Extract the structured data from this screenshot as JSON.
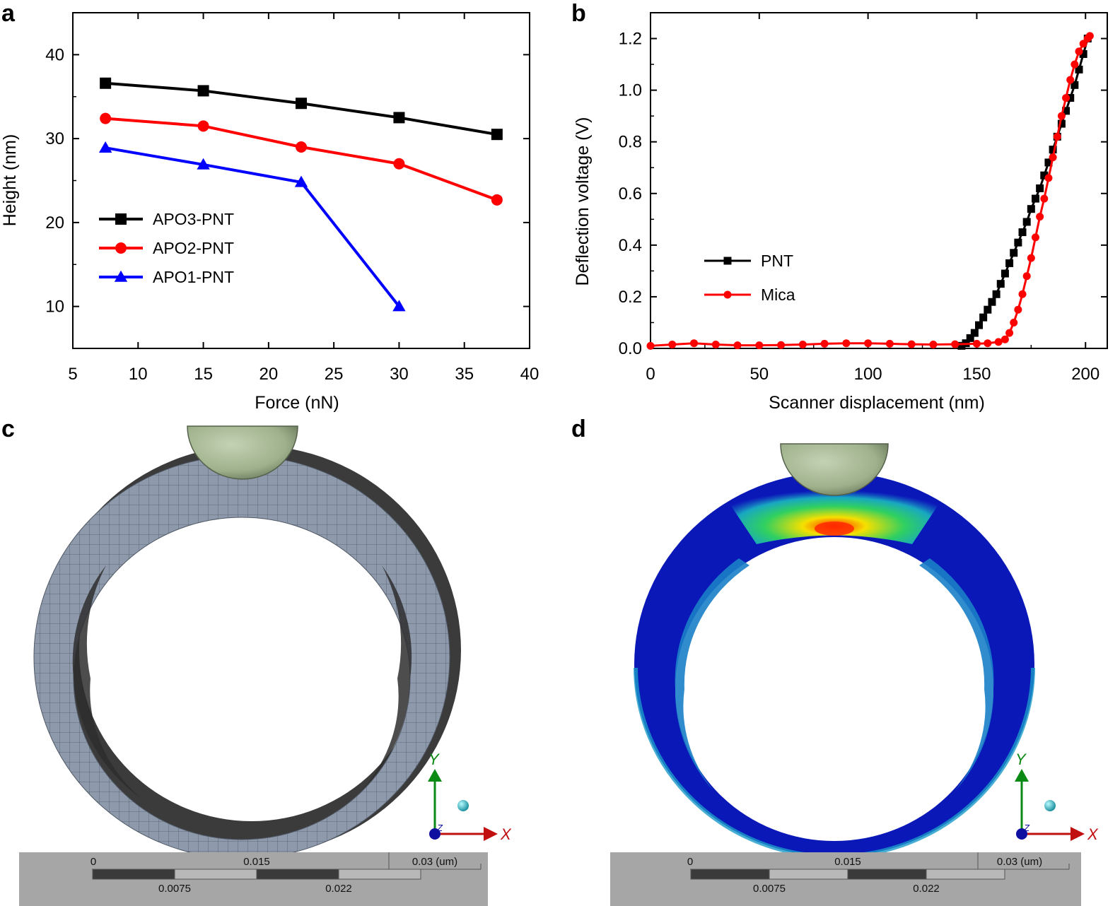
{
  "panels": {
    "a": {
      "letter": "a"
    },
    "b": {
      "letter": "b"
    },
    "c": {
      "letter": "c"
    },
    "d": {
      "letter": "d"
    }
  },
  "chart_data": [
    {
      "panel": "a",
      "type": "line",
      "title": "",
      "xlabel": "Force (nN)",
      "ylabel": "Height (nm)",
      "xlim": [
        5,
        40
      ],
      "ylim": [
        5,
        45
      ],
      "xticks": [
        5,
        10,
        15,
        20,
        25,
        30,
        35,
        40
      ],
      "yticks": [
        10,
        20,
        30,
        40
      ],
      "legend_position": "middle-left",
      "series": [
        {
          "name": "APO3-PNT",
          "color": "#000000",
          "marker": "square",
          "x": [
            7.5,
            15,
            22.5,
            30,
            37.5
          ],
          "y": [
            36.6,
            35.7,
            34.2,
            32.5,
            30.5
          ]
        },
        {
          "name": "APO2-PNT",
          "color": "#ff0000",
          "marker": "circle",
          "x": [
            7.5,
            15,
            22.5,
            30,
            37.5
          ],
          "y": [
            32.4,
            31.5,
            29.0,
            27.0,
            22.7
          ]
        },
        {
          "name": "APO1-PNT",
          "color": "#0000ff",
          "marker": "triangle",
          "x": [
            7.5,
            15,
            22.5,
            30
          ],
          "y": [
            28.9,
            26.9,
            24.8,
            10.0
          ]
        }
      ]
    },
    {
      "panel": "b",
      "type": "scatter",
      "title": "",
      "xlabel": "Scanner displacement (nm)",
      "ylabel": "Deflection voltage (V)",
      "xlim": [
        0,
        210
      ],
      "ylim": [
        0,
        1.3
      ],
      "xticks": [
        0,
        50,
        100,
        150,
        200
      ],
      "yticks": [
        0.0,
        0.2,
        0.4,
        0.6,
        0.8,
        1.0,
        1.2
      ],
      "legend_position": "middle-left",
      "series": [
        {
          "name": "PNT",
          "color": "#000000",
          "marker": "square",
          "x": [
            143,
            145,
            147,
            149,
            151,
            153,
            155,
            157,
            159,
            161,
            163,
            165,
            167,
            169,
            171,
            173,
            175,
            177,
            179,
            181,
            183,
            185,
            187,
            189,
            191,
            193,
            195,
            197,
            199,
            201
          ],
          "y": [
            0.01,
            0.02,
            0.04,
            0.06,
            0.09,
            0.12,
            0.15,
            0.18,
            0.21,
            0.25,
            0.29,
            0.33,
            0.37,
            0.41,
            0.45,
            0.49,
            0.54,
            0.58,
            0.62,
            0.67,
            0.72,
            0.77,
            0.82,
            0.87,
            0.92,
            0.97,
            1.02,
            1.08,
            1.14,
            1.2
          ]
        },
        {
          "name": "Mica",
          "color": "#ff0000",
          "marker": "circle",
          "x": [
            0,
            10,
            20,
            30,
            40,
            50,
            60,
            70,
            80,
            90,
            100,
            110,
            120,
            130,
            140,
            150,
            155,
            160,
            163,
            165,
            167,
            169,
            171,
            173,
            175,
            177,
            179,
            181,
            183,
            185,
            187,
            189,
            191,
            193,
            195,
            197,
            199,
            201,
            202
          ],
          "y": [
            0.01,
            0.015,
            0.02,
            0.015,
            0.012,
            0.012,
            0.013,
            0.015,
            0.018,
            0.02,
            0.02,
            0.018,
            0.016,
            0.015,
            0.016,
            0.018,
            0.02,
            0.025,
            0.035,
            0.06,
            0.1,
            0.15,
            0.21,
            0.28,
            0.35,
            0.43,
            0.51,
            0.58,
            0.66,
            0.74,
            0.82,
            0.9,
            0.97,
            1.04,
            1.1,
            1.15,
            1.18,
            1.2,
            1.21
          ]
        }
      ]
    }
  ],
  "panel_c": {
    "axes": {
      "y": "Y",
      "z": "Z",
      "x": "X"
    },
    "scale": {
      "labels_top": [
        "0",
        "0.015",
        "0.03 (um)"
      ],
      "labels_bottom": [
        "0.0075",
        "0.022"
      ]
    },
    "colors": {
      "tube": "#8e9aab",
      "tube_shadow": "#3a3a3a",
      "tip": "#a2b38f"
    }
  },
  "panel_d": {
    "axes": {
      "y": "Y",
      "z": "Z",
      "x": "X"
    },
    "scale": {
      "labels_top": [
        "0",
        "0.015",
        "0.03 (um)"
      ],
      "labels_bottom": [
        "0.0075",
        "0.022"
      ]
    },
    "colors": {
      "tube": "#0a18b8",
      "tube_light": "#1a7fc8",
      "stress_hot": "#ff2a00",
      "tip": "#a2b38f"
    }
  }
}
